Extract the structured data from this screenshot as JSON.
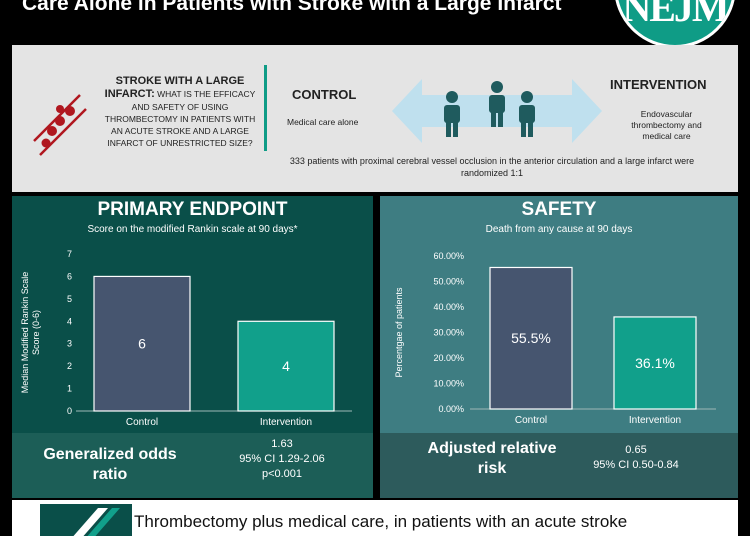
{
  "header": {
    "title": "Care Alone in Patients with Stroke with a Large Infarct",
    "logo_text": "NEJM"
  },
  "design": {
    "question_heading": "STROKE WITH A LARGE INFARCT:",
    "question_body": "WHAT IS THE EFFICACY AND SAFETY OF USING THROMBECTOMY IN PATIENTS WITH AN ACUTE STROKE AND A LARGE INFARCT OF UNRESTRICTED SIZE?",
    "control_heading": "CONTROL",
    "control_desc": "Medical care alone",
    "intervention_heading": "INTERVENTION",
    "intervention_desc": "Endovascular thrombectomy and medical care",
    "enrollment": "333 patients with proximal cerebral vessel occlusion in the anterior circulation and a large infarct were randomized 1:1"
  },
  "primary": {
    "title": "PRIMARY ENDPOINT",
    "subtitle": "Score on the modified Rankin scale at 90 days*",
    "stat_label": "Generalized odds ratio",
    "stat_value": "1.63",
    "stat_ci": "95% CI 1.29-2.06",
    "stat_p": "p<0.001"
  },
  "safety": {
    "title": "SAFETY",
    "subtitle": "Death from any cause at 90 days",
    "stat_label": "Adjusted relative risk",
    "stat_value": "0.65",
    "stat_ci": "95% CI 0.50-0.84"
  },
  "footer": {
    "conclusion": "Thrombectomy plus medical care, in patients with an acute stroke"
  },
  "colors": {
    "control_bar": "#46556f",
    "intervention_bar": "#11a08b",
    "axis_text": "#ffffff"
  },
  "chart_data": [
    {
      "type": "bar",
      "categories": [
        "Control",
        "Intervention"
      ],
      "values": [
        6,
        4
      ],
      "data_labels": [
        "6",
        "4"
      ],
      "ylabel": "Median Modified Rankin Scale Score (0-6)",
      "ylim": [
        0,
        7
      ],
      "yticks": [
        "0",
        "1",
        "2",
        "3",
        "4",
        "5",
        "6",
        "7"
      ],
      "grid": false
    },
    {
      "type": "bar",
      "categories": [
        "Control",
        "Intervention"
      ],
      "values": [
        55.5,
        36.1
      ],
      "data_labels": [
        "55.5%",
        "36.1%"
      ],
      "ylabel": "Percentgae of patients",
      "ylim": [
        0,
        60
      ],
      "yticks": [
        "0.00%",
        "10.00%",
        "20.00%",
        "30.00%",
        "40.00%",
        "50.00%",
        "60.00%"
      ],
      "grid": false
    }
  ]
}
